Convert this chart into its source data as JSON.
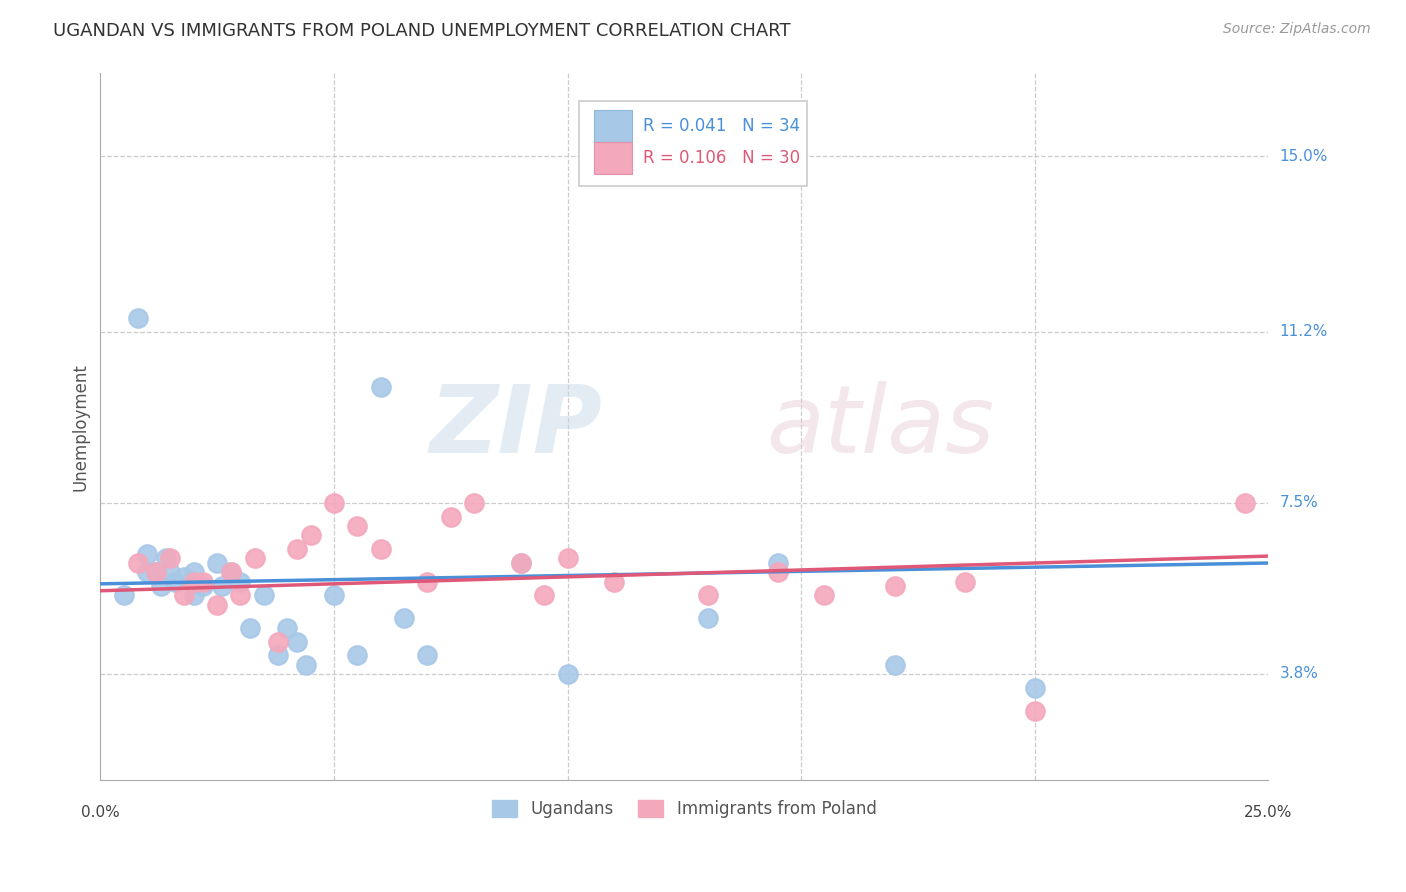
{
  "title": "UGANDAN VS IMMIGRANTS FROM POLAND UNEMPLOYMENT CORRELATION CHART",
  "source": "Source: ZipAtlas.com",
  "ylabel": "Unemployment",
  "ytick_labels": [
    "15.0%",
    "11.2%",
    "7.5%",
    "3.8%"
  ],
  "ytick_values": [
    0.15,
    0.112,
    0.075,
    0.038
  ],
  "xlim": [
    0.0,
    0.25
  ],
  "ylim": [
    0.015,
    0.168
  ],
  "legend1_r": "0.041",
  "legend1_n": "34",
  "legend2_r": "0.106",
  "legend2_n": "30",
  "ugandan_color": "#a8c8e8",
  "poland_color": "#f4a8bc",
  "ugandan_line_color": "#4a90d9",
  "poland_line_color": "#e05878",
  "watermark_zip": "ZIP",
  "watermark_atlas": "atlas",
  "ugandan_x": [
    0.005,
    0.008,
    0.01,
    0.01,
    0.012,
    0.013,
    0.014,
    0.015,
    0.016,
    0.018,
    0.02,
    0.02,
    0.022,
    0.025,
    0.026,
    0.028,
    0.03,
    0.032,
    0.035,
    0.038,
    0.04,
    0.042,
    0.044,
    0.05,
    0.055,
    0.06,
    0.065,
    0.07,
    0.09,
    0.1,
    0.13,
    0.145,
    0.17,
    0.2
  ],
  "ugandan_y": [
    0.055,
    0.115,
    0.06,
    0.064,
    0.06,
    0.057,
    0.063,
    0.06,
    0.058,
    0.059,
    0.06,
    0.055,
    0.057,
    0.062,
    0.057,
    0.06,
    0.058,
    0.048,
    0.055,
    0.042,
    0.048,
    0.045,
    0.04,
    0.055,
    0.042,
    0.1,
    0.05,
    0.042,
    0.062,
    0.038,
    0.05,
    0.062,
    0.04,
    0.035
  ],
  "poland_x": [
    0.008,
    0.012,
    0.015,
    0.018,
    0.02,
    0.022,
    0.025,
    0.028,
    0.03,
    0.033,
    0.038,
    0.042,
    0.045,
    0.05,
    0.055,
    0.06,
    0.07,
    0.075,
    0.08,
    0.09,
    0.095,
    0.1,
    0.11,
    0.13,
    0.145,
    0.155,
    0.17,
    0.185,
    0.2,
    0.245
  ],
  "poland_y": [
    0.062,
    0.06,
    0.063,
    0.055,
    0.058,
    0.058,
    0.053,
    0.06,
    0.055,
    0.063,
    0.045,
    0.065,
    0.068,
    0.075,
    0.07,
    0.065,
    0.058,
    0.072,
    0.075,
    0.062,
    0.055,
    0.063,
    0.058,
    0.055,
    0.06,
    0.055,
    0.057,
    0.058,
    0.03,
    0.075
  ],
  "trend_ug_x0": 0.0,
  "trend_ug_x1": 0.25,
  "trend_ug_y0": 0.0575,
  "trend_ug_y1": 0.062,
  "trend_pl_x0": 0.0,
  "trend_pl_x1": 0.25,
  "trend_pl_y0": 0.056,
  "trend_pl_y1": 0.0635
}
